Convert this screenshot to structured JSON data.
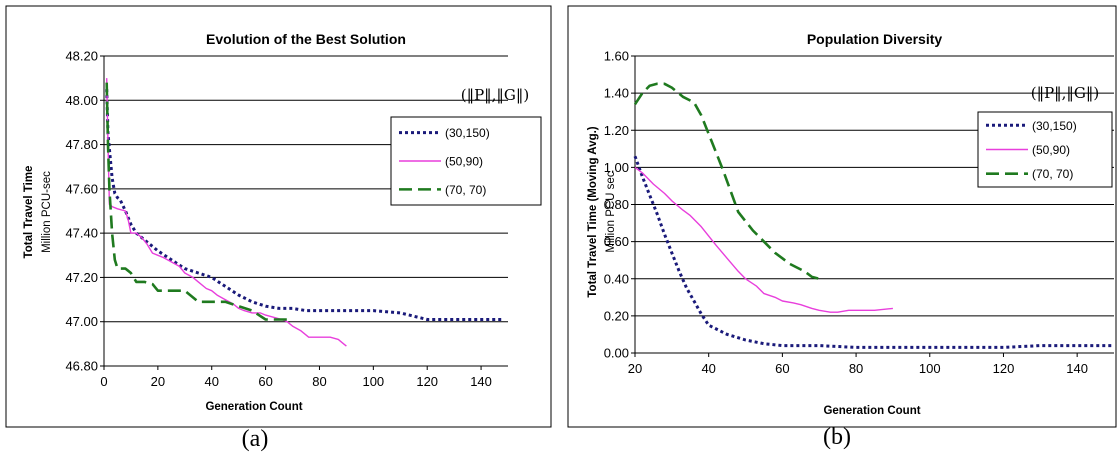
{
  "captions": [
    "(a)",
    "(b)"
  ],
  "chart_data": [
    {
      "type": "line",
      "title": "Evolution of the Best Solution",
      "xlabel": "Generation Count",
      "ylabel": "Total Travel Time",
      "ylabel_sub": "Million PCU-sec",
      "xlim": [
        0,
        150
      ],
      "ylim": [
        46.8,
        48.2
      ],
      "xticks": [
        "0",
        "20",
        "40",
        "60",
        "80",
        "100",
        "120",
        "140"
      ],
      "yticks": [
        "46.80",
        "47.00",
        "47.20",
        "47.40",
        "47.60",
        "47.80",
        "48.00",
        "48.20"
      ],
      "grid": true,
      "legend_title": "(‖P‖,‖G‖)",
      "legend_position": "top-right",
      "series": [
        {
          "name": "(30,150)",
          "color": "#1a1a7a",
          "style": "dotted",
          "x": [
            1,
            1.5,
            2,
            3,
            4,
            5,
            6,
            8,
            10,
            12,
            15,
            18,
            20,
            25,
            30,
            35,
            40,
            45,
            50,
            55,
            60,
            65,
            70,
            75,
            80,
            90,
            100,
            110,
            120,
            130,
            140,
            148
          ],
          "y": [
            48.05,
            47.85,
            47.78,
            47.65,
            47.58,
            47.56,
            47.55,
            47.5,
            47.44,
            47.4,
            47.37,
            47.34,
            47.32,
            47.28,
            47.24,
            47.22,
            47.2,
            47.16,
            47.12,
            47.09,
            47.07,
            47.06,
            47.06,
            47.05,
            47.05,
            47.05,
            47.05,
            47.04,
            47.01,
            47.01,
            47.01,
            47.01
          ]
        },
        {
          "name": "(50,90)",
          "color": "#e83fdc",
          "style": "solid",
          "x": [
            1,
            1.5,
            2,
            3,
            5,
            8,
            9,
            10,
            12,
            14,
            16,
            18,
            20,
            22,
            25,
            28,
            30,
            33,
            35,
            38,
            40,
            42,
            45,
            48,
            50,
            52,
            55,
            58,
            60,
            63,
            66,
            68,
            70,
            73,
            76,
            80,
            84,
            87,
            89,
            90
          ],
          "y": [
            48.1,
            47.8,
            47.53,
            47.52,
            47.51,
            47.5,
            47.46,
            47.4,
            47.4,
            47.38,
            47.35,
            47.31,
            47.3,
            47.29,
            47.27,
            47.25,
            47.22,
            47.2,
            47.18,
            47.15,
            47.14,
            47.12,
            47.1,
            47.08,
            47.06,
            47.05,
            47.04,
            47.04,
            47.03,
            47.02,
            47.01,
            47.0,
            46.98,
            46.96,
            46.93,
            46.93,
            46.93,
            46.92,
            46.9,
            46.89
          ]
        },
        {
          "name": "(70, 70)",
          "color": "#1f7a1f",
          "style": "dashed",
          "x": [
            1,
            1.5,
            2,
            3,
            4,
            5,
            8,
            10,
            12,
            15,
            18,
            20,
            25,
            30,
            35,
            40,
            45,
            50,
            55,
            60,
            65,
            70
          ],
          "y": [
            48.08,
            47.8,
            47.6,
            47.4,
            47.28,
            47.24,
            47.24,
            47.22,
            47.18,
            47.18,
            47.17,
            47.14,
            47.14,
            47.14,
            47.09,
            47.09,
            47.09,
            47.07,
            47.05,
            47.01,
            47.01,
            47.01
          ]
        }
      ]
    },
    {
      "type": "line",
      "title": "Population Diversity",
      "xlabel": "Generation Count",
      "ylabel": "Total Travel Time (Moving Avg.)",
      "ylabel_sub": "Million PCU sec",
      "xlim": [
        20,
        150
      ],
      "ylim": [
        0,
        1.6
      ],
      "xticks": [
        "20",
        "40",
        "60",
        "80",
        "100",
        "120",
        "140"
      ],
      "yticks": [
        "0.00",
        "0.20",
        "0.40",
        "0.60",
        "0.80",
        "1.00",
        "1.20",
        "1.40",
        "1.60"
      ],
      "grid": true,
      "legend_title": "(‖P‖,‖G‖)",
      "legend_position": "top-right",
      "series": [
        {
          "name": "(30,150)",
          "color": "#1a1a7a",
          "style": "dotted",
          "x": [
            20,
            22,
            24,
            26,
            28,
            30,
            32,
            34,
            36,
            38,
            40,
            42,
            45,
            50,
            55,
            60,
            70,
            80,
            90,
            100,
            110,
            120,
            130,
            140,
            150
          ],
          "y": [
            1.06,
            0.95,
            0.85,
            0.75,
            0.64,
            0.54,
            0.44,
            0.35,
            0.28,
            0.21,
            0.15,
            0.13,
            0.1,
            0.07,
            0.05,
            0.04,
            0.04,
            0.03,
            0.03,
            0.03,
            0.03,
            0.03,
            0.04,
            0.04,
            0.04
          ]
        },
        {
          "name": "(50,90)",
          "color": "#e83fdc",
          "style": "solid",
          "x": [
            20,
            22,
            25,
            28,
            30,
            33,
            35,
            38,
            40,
            42,
            45,
            48,
            50,
            53,
            55,
            58,
            60,
            63,
            65,
            68,
            70,
            73,
            75,
            78,
            80,
            85,
            90
          ],
          "y": [
            1.0,
            0.97,
            0.91,
            0.86,
            0.82,
            0.77,
            0.74,
            0.68,
            0.63,
            0.58,
            0.51,
            0.44,
            0.4,
            0.36,
            0.32,
            0.3,
            0.28,
            0.27,
            0.26,
            0.24,
            0.23,
            0.22,
            0.22,
            0.23,
            0.23,
            0.23,
            0.24
          ]
        },
        {
          "name": "(70, 70)",
          "color": "#1f7a1f",
          "style": "dashed",
          "x": [
            20,
            22,
            24,
            26,
            28,
            30,
            33,
            36,
            38,
            40,
            42,
            44,
            46,
            48,
            50,
            52,
            54,
            56,
            58,
            60,
            62,
            64,
            66,
            68,
            70
          ],
          "y": [
            1.34,
            1.4,
            1.44,
            1.45,
            1.45,
            1.43,
            1.38,
            1.35,
            1.28,
            1.18,
            1.08,
            0.98,
            0.87,
            0.76,
            0.71,
            0.66,
            0.62,
            0.58,
            0.54,
            0.51,
            0.48,
            0.46,
            0.44,
            0.41,
            0.4
          ]
        }
      ]
    }
  ]
}
